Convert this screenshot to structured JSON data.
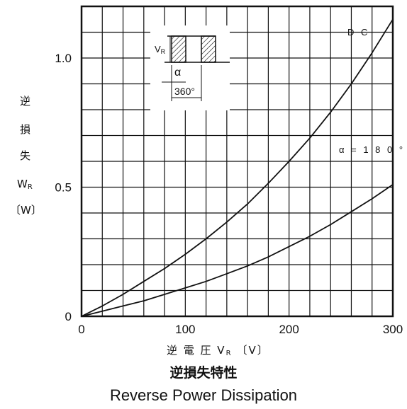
{
  "chart_data": {
    "type": "line",
    "title": "逆損失特性",
    "subtitle": "Reverse Power Dissipation",
    "xlabel": "逆 電 圧   V",
    "xlabel_sub": "R",
    "xlabel_unit": "〔V〕",
    "ylabel_lines": [
      "逆",
      "損",
      "失",
      "W",
      "〔W〕"
    ],
    "ylabel_sub": "R",
    "xlim": [
      0,
      300
    ],
    "ylim": [
      0,
      1.2
    ],
    "x_ticks": [
      0,
      100,
      200,
      300
    ],
    "x_tick_labels": [
      "0",
      "100",
      "200",
      "300"
    ],
    "y_ticks": [
      0,
      0.5,
      1.0
    ],
    "y_tick_labels": [
      "0",
      "0.5",
      "1.0"
    ],
    "grid": true,
    "series": [
      {
        "name": "D C",
        "x": [
          0,
          20,
          40,
          60,
          80,
          100,
          120,
          140,
          160,
          180,
          200,
          220,
          240,
          260,
          280,
          300
        ],
        "values": [
          0,
          0.04,
          0.085,
          0.135,
          0.185,
          0.24,
          0.3,
          0.365,
          0.435,
          0.515,
          0.6,
          0.69,
          0.79,
          0.9,
          1.02,
          1.15
        ]
      },
      {
        "name": "α = 1 8 0 °",
        "x": [
          0,
          20,
          40,
          60,
          80,
          100,
          120,
          140,
          160,
          180,
          200,
          220,
          240,
          260,
          280,
          300
        ],
        "values": [
          0,
          0.02,
          0.04,
          0.06,
          0.085,
          0.11,
          0.135,
          0.165,
          0.195,
          0.23,
          0.27,
          0.31,
          0.355,
          0.405,
          0.455,
          0.51
        ]
      }
    ],
    "inset": {
      "vr_label": "V",
      "vr_sub": "R",
      "alpha_label": "α",
      "period_label": "360°"
    },
    "colors": {
      "line": "#111111",
      "grid": "#111111",
      "background": "#ffffff"
    }
  }
}
